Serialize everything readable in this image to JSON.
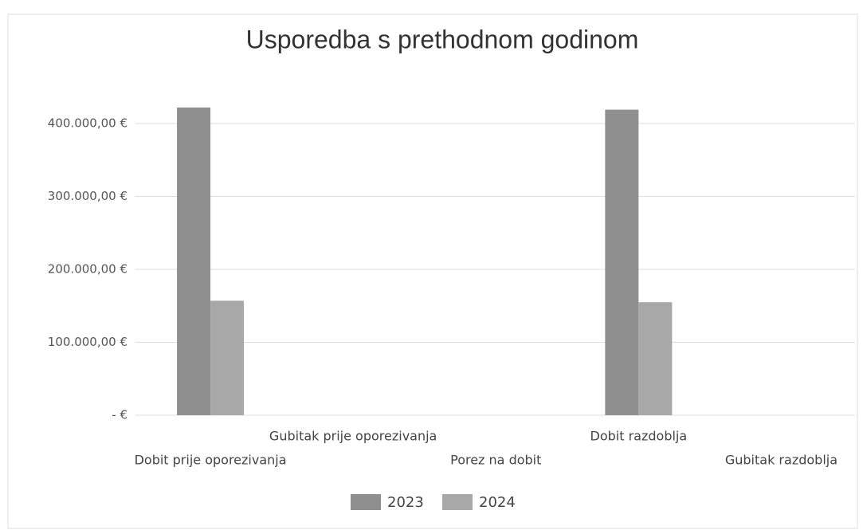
{
  "chart_data": {
    "type": "bar",
    "title": "Usporedba s prethodnom godinom",
    "categories": [
      "Dobit prije oporezivanja",
      "Gubitak prije oporezivanja",
      "Porez na dobit",
      "Dobit razdoblja",
      "Gubitak razdoblja"
    ],
    "series": [
      {
        "name": "2023",
        "color": "#8f8f8f",
        "values": [
          422000,
          0,
          0,
          419000,
          0
        ]
      },
      {
        "name": "2024",
        "color": "#a8a8a8",
        "values": [
          157000,
          0,
          0,
          155000,
          0
        ]
      }
    ],
    "ylim": [
      0,
      400000
    ],
    "yticks": [
      {
        "value": 0,
        "label": "-  €"
      },
      {
        "value": 100000,
        "label": "100.000,00 €"
      },
      {
        "value": 200000,
        "label": "200.000,00 €"
      },
      {
        "value": 300000,
        "label": "300.000,00 €"
      },
      {
        "value": 400000,
        "label": "400.000,00 €"
      }
    ],
    "grid": true,
    "legend": "bottom"
  }
}
